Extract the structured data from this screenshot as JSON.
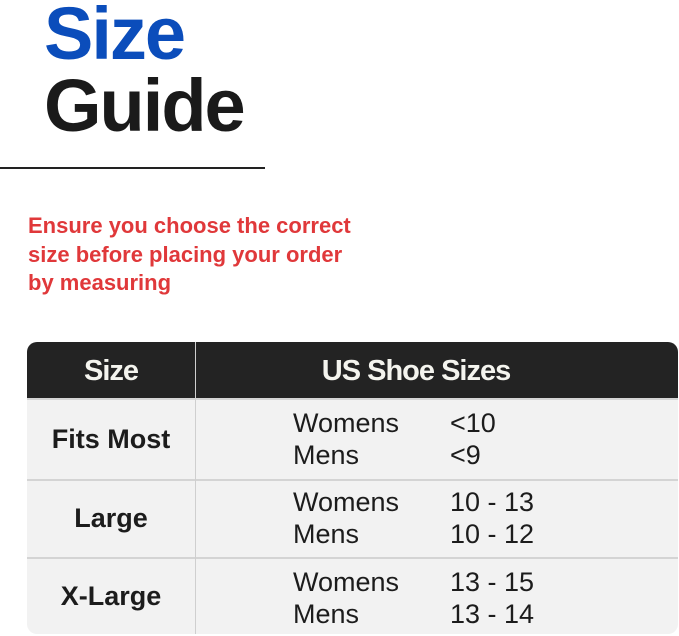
{
  "title": {
    "line1": "Size",
    "line2": "Guide"
  },
  "note": "Ensure you choose the correct size before placing your order by measuring",
  "colors": {
    "accent": "#0b4dbb",
    "note": "#e0383a",
    "header_bg": "#232323"
  },
  "table": {
    "headers": [
      "Size",
      "US Shoe Sizes"
    ],
    "rows": [
      {
        "size": "Fits Most",
        "entries": [
          {
            "label": "Womens",
            "value": "<10"
          },
          {
            "label": "Mens",
            "value": "<9"
          }
        ]
      },
      {
        "size": "Large",
        "entries": [
          {
            "label": "Womens",
            "value": "10 - 13"
          },
          {
            "label": "Mens",
            "value": "10 - 12"
          }
        ]
      },
      {
        "size": "X-Large",
        "entries": [
          {
            "label": "Womens",
            "value": "13 - 15"
          },
          {
            "label": "Mens",
            "value": "13 - 14"
          }
        ]
      }
    ]
  }
}
